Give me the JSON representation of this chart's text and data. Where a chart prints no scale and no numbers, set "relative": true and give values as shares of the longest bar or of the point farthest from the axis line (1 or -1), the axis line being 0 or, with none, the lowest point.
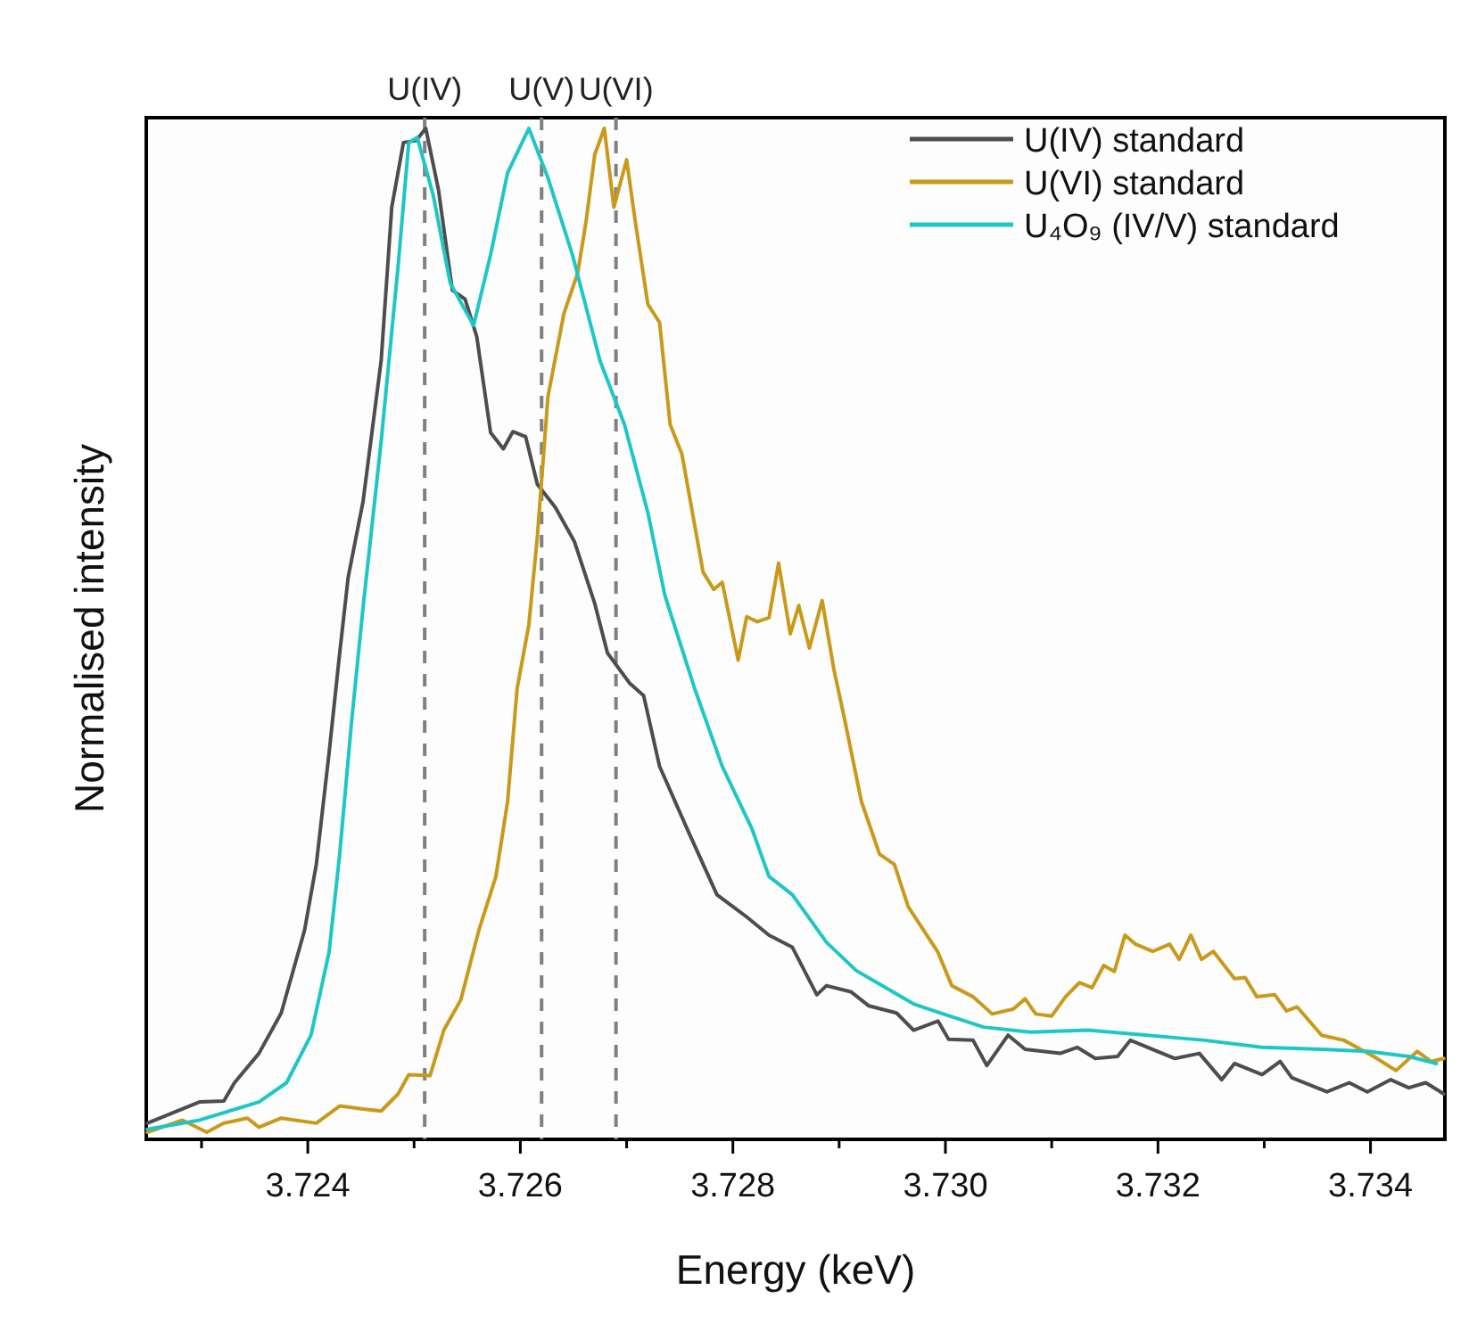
{
  "chart_data": {
    "type": "line",
    "xlabel": "Energy (keV)",
    "ylabel": "Normalised intensity",
    "relative": true,
    "xlim": [
      3.72248,
      3.7347
    ],
    "xticks": [
      {
        "value": 3.723,
        "label": null
      },
      3.724,
      {
        "value": 3.725,
        "label": null
      },
      3.726,
      {
        "value": 3.727,
        "label": null
      },
      3.728,
      {
        "value": 3.729,
        "label": null
      },
      {
        "value": 3.73,
        "label": "3.730"
      },
      {
        "value": 3.731,
        "label": null
      },
      3.732,
      {
        "value": 3.733,
        "label": null
      },
      3.734
    ],
    "legend": "top right",
    "line_style": "solid",
    "grid": false,
    "ref_lines": [
      {
        "axis": "x",
        "value": 3.7251,
        "label": "U(IV)",
        "color": "#808080",
        "line_style": "dashed"
      },
      {
        "axis": "x",
        "value": 3.7262,
        "label": "U(V)",
        "color": "#808080",
        "line_style": "dashed"
      },
      {
        "axis": "x",
        "value": 3.7269,
        "label": "U(VI)",
        "color": "#808080",
        "line_style": "dashed"
      }
    ],
    "series": [
      {
        "name": "U(IV) standard",
        "color": "#4d4d4d",
        "x": [
          3.72249,
          3.72298,
          3.72321,
          3.72331,
          3.72354,
          3.72375,
          3.72397,
          3.72408,
          3.7242,
          3.7243,
          3.72438,
          3.72452,
          3.72469,
          3.72479,
          3.7249,
          3.72502,
          3.72511,
          3.72523,
          3.72536,
          3.72548,
          3.72559,
          3.72572,
          3.72584,
          3.72593,
          3.72605,
          3.72616,
          3.72633,
          3.72651,
          3.7267,
          3.72682,
          3.72703,
          3.72716,
          3.72731,
          3.72757,
          3.72785,
          3.72813,
          3.72834,
          3.72856,
          3.72879,
          3.72888,
          3.72911,
          3.72928,
          3.72954,
          3.7297,
          3.72993,
          3.73003,
          3.73026,
          3.73039,
          3.73059,
          3.73075,
          3.73108,
          3.73124,
          3.73141,
          3.73162,
          3.73174,
          3.73195,
          3.73216,
          3.73239,
          3.7326,
          3.73272,
          3.73298,
          3.73315,
          3.73326,
          3.73359,
          3.7338,
          3.73397,
          3.73419,
          3.73436,
          3.73452,
          3.73469
        ],
        "values": [
          0.016,
          0.037,
          0.038,
          0.056,
          0.085,
          0.125,
          0.207,
          0.272,
          0.382,
          0.481,
          0.556,
          0.631,
          0.77,
          0.922,
          0.986,
          0.988,
          1,
          0.939,
          0.84,
          0.831,
          0.794,
          0.699,
          0.683,
          0.7,
          0.695,
          0.648,
          0.625,
          0.591,
          0.53,
          0.481,
          0.451,
          0.439,
          0.369,
          0.307,
          0.242,
          0.22,
          0.202,
          0.19,
          0.143,
          0.152,
          0.146,
          0.132,
          0.125,
          0.108,
          0.117,
          0.099,
          0.098,
          0.073,
          0.103,
          0.089,
          0.085,
          0.091,
          0.08,
          0.082,
          0.098,
          0.089,
          0.08,
          0.085,
          0.059,
          0.075,
          0.064,
          0.077,
          0.061,
          0.047,
          0.056,
          0.047,
          0.059,
          0.051,
          0.056,
          0.045
        ]
      },
      {
        "name": "U(VI) standard",
        "color": "#c99a1a",
        "x": [
          3.72249,
          3.72282,
          3.72305,
          3.72321,
          3.72343,
          3.72354,
          3.72375,
          3.72408,
          3.7243,
          3.72452,
          3.72469,
          3.72485,
          3.72495,
          3.72515,
          3.72528,
          3.72544,
          3.72561,
          3.72577,
          3.72588,
          3.72597,
          3.72608,
          3.72616,
          3.72626,
          3.72641,
          3.72654,
          3.72662,
          3.7267,
          3.72679,
          3.72688,
          3.727,
          3.72708,
          3.7272,
          3.72731,
          3.72741,
          3.72752,
          3.72772,
          3.72782,
          3.7279,
          3.72805,
          3.72813,
          3.72823,
          3.72834,
          3.72843,
          3.72854,
          3.72862,
          3.72872,
          3.72884,
          3.72895,
          3.72905,
          3.72921,
          3.72938,
          3.72952,
          3.72965,
          3.72993,
          3.73006,
          3.73026,
          3.73044,
          3.73064,
          3.73075,
          3.73085,
          3.731,
          3.73113,
          3.73126,
          3.73138,
          3.73149,
          3.73159,
          3.73169,
          3.73179,
          3.73195,
          3.73211,
          3.7322,
          3.73231,
          3.73241,
          3.73252,
          3.73272,
          3.73282,
          3.73293,
          3.7331,
          3.73321,
          3.73331,
          3.73354,
          3.73375,
          3.73403,
          3.73424,
          3.73444,
          3.73457,
          3.73469
        ],
        "values": [
          0.007,
          0.019,
          0.007,
          0.016,
          0.021,
          0.012,
          0.021,
          0.016,
          0.033,
          0.03,
          0.028,
          0.045,
          0.064,
          0.063,
          0.108,
          0.138,
          0.207,
          0.26,
          0.334,
          0.446,
          0.509,
          0.596,
          0.735,
          0.817,
          0.857,
          0.909,
          0.974,
          1,
          0.922,
          0.969,
          0.909,
          0.826,
          0.808,
          0.707,
          0.678,
          0.561,
          0.544,
          0.551,
          0.474,
          0.517,
          0.512,
          0.516,
          0.57,
          0.5,
          0.528,
          0.486,
          0.533,
          0.465,
          0.416,
          0.334,
          0.282,
          0.272,
          0.23,
          0.185,
          0.152,
          0.141,
          0.124,
          0.129,
          0.139,
          0.124,
          0.122,
          0.141,
          0.155,
          0.15,
          0.172,
          0.166,
          0.202,
          0.193,
          0.186,
          0.193,
          0.178,
          0.202,
          0.178,
          0.186,
          0.159,
          0.16,
          0.141,
          0.143,
          0.127,
          0.131,
          0.103,
          0.098,
          0.082,
          0.068,
          0.087,
          0.077,
          0.08
        ]
      },
      {
        "name": "U₄O₉ (IV/V) standard",
        "color": "#1fc6c6",
        "x": [
          3.72249,
          3.72298,
          3.72354,
          3.7238,
          3.72403,
          3.7242,
          3.7243,
          3.72441,
          3.72452,
          3.72469,
          3.72485,
          3.72495,
          3.72503,
          3.72518,
          3.72534,
          3.72556,
          3.72572,
          3.72588,
          3.72608,
          3.72626,
          3.72649,
          3.72675,
          3.72698,
          3.7272,
          3.72736,
          3.72764,
          3.7279,
          3.72818,
          3.72834,
          3.72856,
          3.72888,
          3.72916,
          3.72944,
          3.7297,
          3.72998,
          3.73036,
          3.7308,
          3.73134,
          3.7319,
          3.73244,
          3.73298,
          3.73354,
          3.73397,
          3.73436,
          3.73462
        ],
        "values": [
          0.01,
          0.019,
          0.037,
          0.056,
          0.103,
          0.185,
          0.282,
          0.411,
          0.526,
          0.69,
          0.864,
          0.986,
          0.991,
          0.934,
          0.847,
          0.805,
          0.875,
          0.956,
          1,
          0.951,
          0.875,
          0.77,
          0.707,
          0.62,
          0.538,
          0.446,
          0.369,
          0.307,
          0.26,
          0.242,
          0.195,
          0.167,
          0.15,
          0.134,
          0.124,
          0.111,
          0.106,
          0.108,
          0.103,
          0.098,
          0.091,
          0.089,
          0.087,
          0.082,
          0.075
        ]
      }
    ]
  }
}
